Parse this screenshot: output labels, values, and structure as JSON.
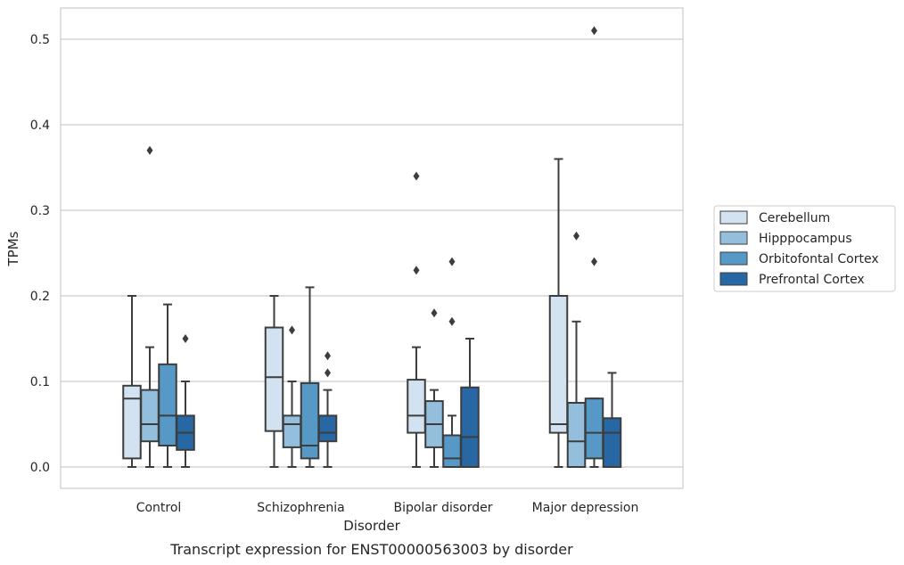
{
  "chart_data": {
    "type": "box",
    "caption": "Transcript expression for ENST00000563003 by disorder",
    "xlabel": "Disorder",
    "ylabel": "TPMs",
    "ylim": [
      -0.025,
      0.537
    ],
    "yticks": [
      0.0,
      0.1,
      0.2,
      0.3,
      0.4,
      0.5
    ],
    "ytick_labels": [
      "0.0",
      "0.1",
      "0.2",
      "0.3",
      "0.4",
      "0.5"
    ],
    "grid": "horizontal",
    "legend_position": "right",
    "categories": [
      "Control",
      "Schizophrenia",
      "Bipolar disorder",
      "Major depression"
    ],
    "series": [
      {
        "name": "Cerebellum",
        "color": "#d3e2f0",
        "boxes": [
          {
            "whislo": 0.0,
            "q1": 0.01,
            "med": 0.08,
            "q3": 0.095,
            "whishi": 0.2,
            "fliers": []
          },
          {
            "whislo": 0.0,
            "q1": 0.042,
            "med": 0.105,
            "q3": 0.163,
            "whishi": 0.2,
            "fliers": []
          },
          {
            "whislo": 0.0,
            "q1": 0.04,
            "med": 0.06,
            "q3": 0.102,
            "whishi": 0.14,
            "fliers": [
              0.23,
              0.34
            ]
          },
          {
            "whislo": 0.0,
            "q1": 0.04,
            "med": 0.05,
            "q3": 0.2,
            "whishi": 0.36,
            "fliers": []
          }
        ]
      },
      {
        "name": "Hipppocampus",
        "color": "#94bfdc",
        "boxes": [
          {
            "whislo": 0.0,
            "q1": 0.03,
            "med": 0.05,
            "q3": 0.09,
            "whishi": 0.14,
            "fliers": [
              0.37
            ]
          },
          {
            "whislo": 0.0,
            "q1": 0.023,
            "med": 0.05,
            "q3": 0.06,
            "whishi": 0.1,
            "fliers": [
              0.16
            ]
          },
          {
            "whislo": 0.0,
            "q1": 0.023,
            "med": 0.05,
            "q3": 0.077,
            "whishi": 0.09,
            "fliers": [
              0.18
            ]
          },
          {
            "whislo": 0.0,
            "q1": 0.0,
            "med": 0.03,
            "q3": 0.075,
            "whishi": 0.17,
            "fliers": [
              0.27
            ]
          }
        ]
      },
      {
        "name": "Orbitofontal Cortex",
        "color": "#5799c6",
        "boxes": [
          {
            "whislo": 0.0,
            "q1": 0.025,
            "med": 0.06,
            "q3": 0.12,
            "whishi": 0.19,
            "fliers": []
          },
          {
            "whislo": 0.0,
            "q1": 0.01,
            "med": 0.025,
            "q3": 0.098,
            "whishi": 0.21,
            "fliers": []
          },
          {
            "whislo": 0.0,
            "q1": 0.0,
            "med": 0.01,
            "q3": 0.037,
            "whishi": 0.06,
            "fliers": [
              0.17,
              0.24
            ]
          },
          {
            "whislo": 0.0,
            "q1": 0.01,
            "med": 0.04,
            "q3": 0.08,
            "whishi": 0.08,
            "fliers": [
              0.24,
              0.51
            ]
          }
        ]
      },
      {
        "name": "Prefrontal Cortex",
        "color": "#2767a4",
        "boxes": [
          {
            "whislo": 0.0,
            "q1": 0.02,
            "med": 0.04,
            "q3": 0.06,
            "whishi": 0.1,
            "fliers": [
              0.15
            ]
          },
          {
            "whislo": 0.0,
            "q1": 0.03,
            "med": 0.04,
            "q3": 0.06,
            "whishi": 0.09,
            "fliers": [
              0.11,
              0.13
            ]
          },
          {
            "whislo": 0.0,
            "q1": 0.0,
            "med": 0.035,
            "q3": 0.093,
            "whishi": 0.15,
            "fliers": []
          },
          {
            "whislo": 0.0,
            "q1": 0.0,
            "med": 0.04,
            "q3": 0.057,
            "whishi": 0.11,
            "fliers": []
          }
        ]
      }
    ]
  }
}
